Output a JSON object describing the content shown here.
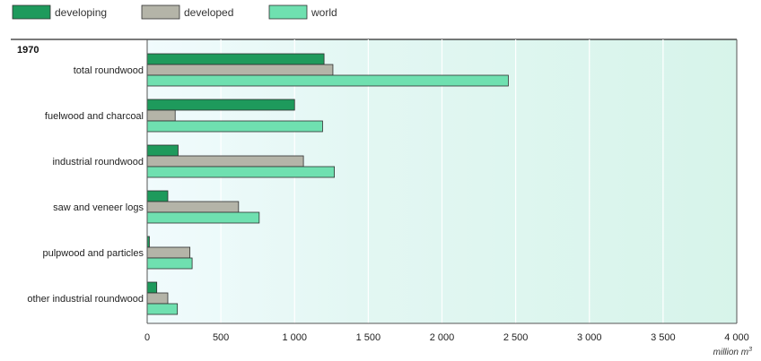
{
  "chart_data": {
    "type": "bar",
    "orientation": "horizontal",
    "title": "1970",
    "xlabel": "million m",
    "xlabel_superscript": "3",
    "xlim": [
      0,
      4000
    ],
    "xticks": [
      0,
      500,
      1000,
      1500,
      2000,
      2500,
      3000,
      3500,
      4000
    ],
    "xtick_labels": [
      "0",
      "500",
      "1 000",
      "1 500",
      "2 000",
      "2 500",
      "3 000",
      "3 500",
      "4 000"
    ],
    "grid": true,
    "legend_position": "top-left",
    "categories": [
      "total roundwood",
      "fuelwood and charcoal",
      "industrial roundwood",
      "saw and veneer logs",
      "pulpwood and particles",
      "other industrial roundwood"
    ],
    "series": [
      {
        "name": "developing",
        "color": "#1e9a5c",
        "values": [
          1200,
          1000,
          210,
          140,
          15,
          65
        ]
      },
      {
        "name": "developed",
        "color": "#b4b4a8",
        "values": [
          1260,
          190,
          1060,
          620,
          290,
          140
        ]
      },
      {
        "name": "world",
        "color": "#6fe0b0",
        "values": [
          2450,
          1190,
          1270,
          760,
          305,
          205
        ]
      }
    ]
  }
}
